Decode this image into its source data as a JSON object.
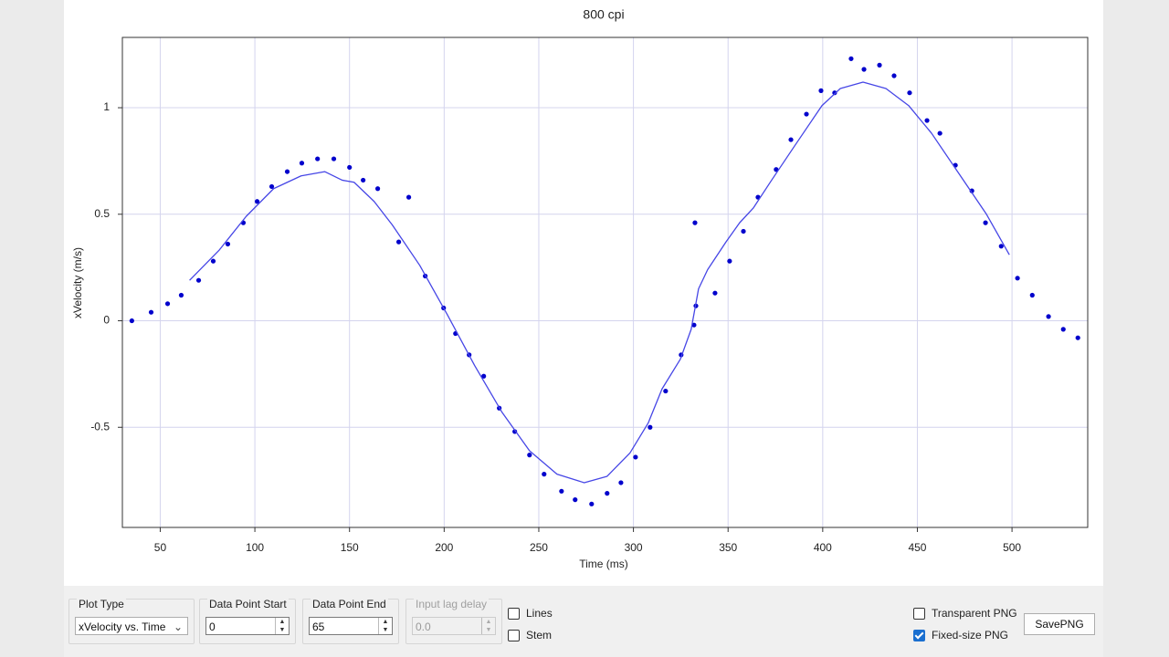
{
  "chart_data": {
    "type": "scatter",
    "title": "800 cpi",
    "xlabel": "Time (ms)",
    "ylabel": "xVelocity (m/s)",
    "xlim": [
      30,
      540
    ],
    "ylim": [
      -0.97,
      1.33
    ],
    "xticks": [
      50,
      100,
      150,
      200,
      250,
      300,
      350,
      400,
      450,
      500
    ],
    "yticks": [
      -0.5,
      0,
      0.5,
      1
    ],
    "grid": true,
    "series": [
      {
        "type": "scatter",
        "color": "#0000cc",
        "x": [
          35.0,
          45.2,
          53.9,
          61.1,
          70.3,
          78.0,
          85.7,
          93.9,
          101.2,
          108.9,
          117.1,
          124.8,
          133.1,
          141.7,
          150.0,
          157.2,
          164.9,
          176.0,
          181.3,
          190.0,
          199.7,
          206.0,
          213.2,
          220.9,
          229.1,
          237.3,
          245.1,
          252.8,
          262.0,
          269.2,
          277.9,
          286.1,
          293.4,
          301.1,
          308.8,
          317.0,
          325.2,
          332.0,
          332.5,
          333.0,
          343.1,
          350.8,
          358.1,
          365.8,
          375.4,
          383.2,
          391.4,
          399.1,
          406.3,
          415.0,
          421.8,
          430.0,
          437.7,
          445.9,
          455.1,
          461.9,
          470.1,
          478.8,
          486.0,
          494.3,
          502.9,
          510.7,
          519.3,
          527.1,
          534.8
        ],
        "values": [
          0,
          0.04,
          0.08,
          0.12,
          0.19,
          0.28,
          0.36,
          0.46,
          0.56,
          0.63,
          0.7,
          0.74,
          0.76,
          0.76,
          0.72,
          0.66,
          0.62,
          0.37,
          0.58,
          0.21,
          0.06,
          -0.06,
          -0.16,
          -0.26,
          -0.41,
          -0.52,
          -0.63,
          -0.72,
          -0.8,
          -0.84,
          -0.86,
          -0.81,
          -0.76,
          -0.64,
          -0.5,
          -0.33,
          -0.16,
          -0.02,
          0.46,
          0.07,
          0.13,
          0.28,
          0.42,
          0.58,
          0.71,
          0.85,
          0.97,
          1.08,
          1.07,
          1.23,
          1.18,
          1.2,
          1.15,
          1.07,
          0.94,
          0.88,
          0.73,
          0.61,
          0.46,
          0.35,
          0.2,
          0.12,
          0.02,
          -0.04,
          -0.08
        ]
      },
      {
        "type": "line",
        "color": "#4646e6",
        "x": [
          65.5,
          81,
          95.4,
          109.9,
          124.4,
          136.9,
          146.1,
          152.4,
          163,
          172.6,
          187.1,
          201.6,
          216.1,
          230.6,
          245.1,
          259.6,
          274,
          286.1,
          298.2,
          307.8,
          315.1,
          324.8,
          330.5,
          334.4,
          339.2,
          348.9,
          356.1,
          363.4,
          373,
          385.1,
          399.6,
          409.3,
          421.3,
          433.4,
          445.4,
          457.5,
          472,
          486.5,
          498.6
        ],
        "values": [
          0.19,
          0.33,
          0.49,
          0.62,
          0.68,
          0.7,
          0.66,
          0.65,
          0.56,
          0.45,
          0.26,
          0.03,
          -0.21,
          -0.43,
          -0.61,
          -0.72,
          -0.76,
          -0.73,
          -0.62,
          -0.48,
          -0.32,
          -0.18,
          -0.04,
          0.15,
          0.24,
          0.37,
          0.46,
          0.53,
          0.66,
          0.82,
          1.01,
          1.09,
          1.12,
          1.09,
          1.01,
          0.88,
          0.69,
          0.5,
          0.31
        ]
      }
    ]
  },
  "controls": {
    "plot_type": {
      "label": "Plot Type",
      "value": "xVelocity vs. Time"
    },
    "start": {
      "label": "Data Point Start",
      "value": "0"
    },
    "end": {
      "label": "Data Point End",
      "value": "65"
    },
    "lag": {
      "label": "Input lag delay",
      "value": "0.0"
    },
    "lines": {
      "label": "Lines",
      "checked": false
    },
    "stem": {
      "label": "Stem",
      "checked": false
    },
    "transparent": {
      "label": "Transparent PNG",
      "checked": false
    },
    "fixed": {
      "label": "Fixed-size PNG",
      "checked": true
    },
    "save": "SavePNG"
  }
}
